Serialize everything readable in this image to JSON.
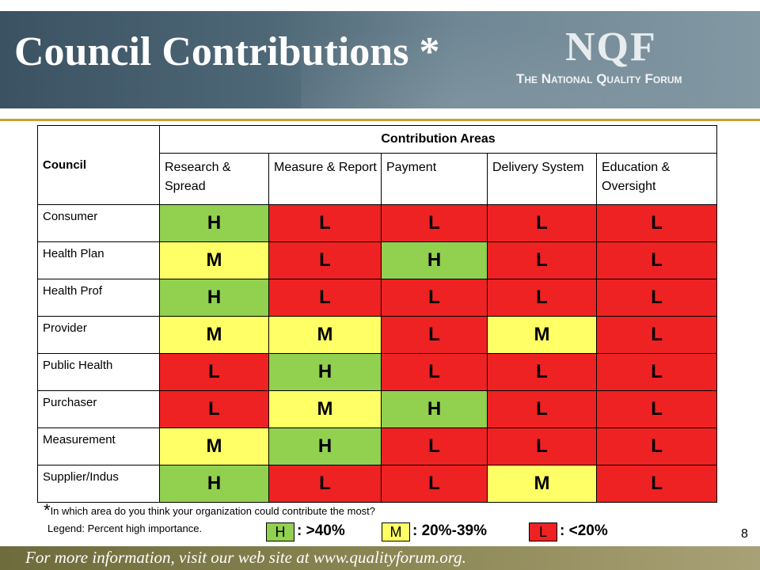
{
  "slide": {
    "title": "Council Contributions *",
    "logo": {
      "mark": "NQF",
      "subtitle": "The National Quality Forum"
    },
    "page_number": "8",
    "footer_text": "For more information, visit our web site at www.qualityforum.org."
  },
  "table": {
    "council_header": "Council",
    "areas_header": "Contribution Areas",
    "columns": [
      "Research & Spread",
      "Measure & Report",
      "Payment",
      "Delivery System",
      "Education & Oversight"
    ],
    "rows": [
      {
        "label": "Consumer",
        "values": [
          "H",
          "L",
          "L",
          "L",
          "L"
        ]
      },
      {
        "label": "Health Plan",
        "values": [
          "M",
          "L",
          "H",
          "L",
          "L"
        ]
      },
      {
        "label": "Health Prof",
        "values": [
          "H",
          "L",
          "L",
          "L",
          "L"
        ]
      },
      {
        "label": "Provider",
        "values": [
          "M",
          "M",
          "L",
          "M",
          "L"
        ]
      },
      {
        "label": "Public Health",
        "values": [
          "L",
          "H",
          "L",
          "L",
          "L"
        ]
      },
      {
        "label": "Purchaser",
        "values": [
          "L",
          "M",
          "H",
          "L",
          "L"
        ]
      },
      {
        "label": "Measurement",
        "values": [
          "M",
          "H",
          "L",
          "L",
          "L"
        ]
      },
      {
        "label": "Supplier/Indus",
        "values": [
          "H",
          "L",
          "L",
          "M",
          "L"
        ]
      }
    ]
  },
  "footnote": {
    "star": "*",
    "text": "In which area do you think your organization could contribute the most?"
  },
  "legend": {
    "label": "Legend:  Percent high importance.",
    "items": [
      {
        "key": "H",
        "text": ": >40%"
      },
      {
        "key": "M",
        "text": ": 20%-39%"
      },
      {
        "key": "L",
        "text": ": <20%"
      }
    ]
  },
  "colors": {
    "H": "#92d050",
    "M": "#ffff66",
    "L": "#ee2222",
    "header_bg": "#4e6776",
    "accent_line": "#c8a132"
  }
}
